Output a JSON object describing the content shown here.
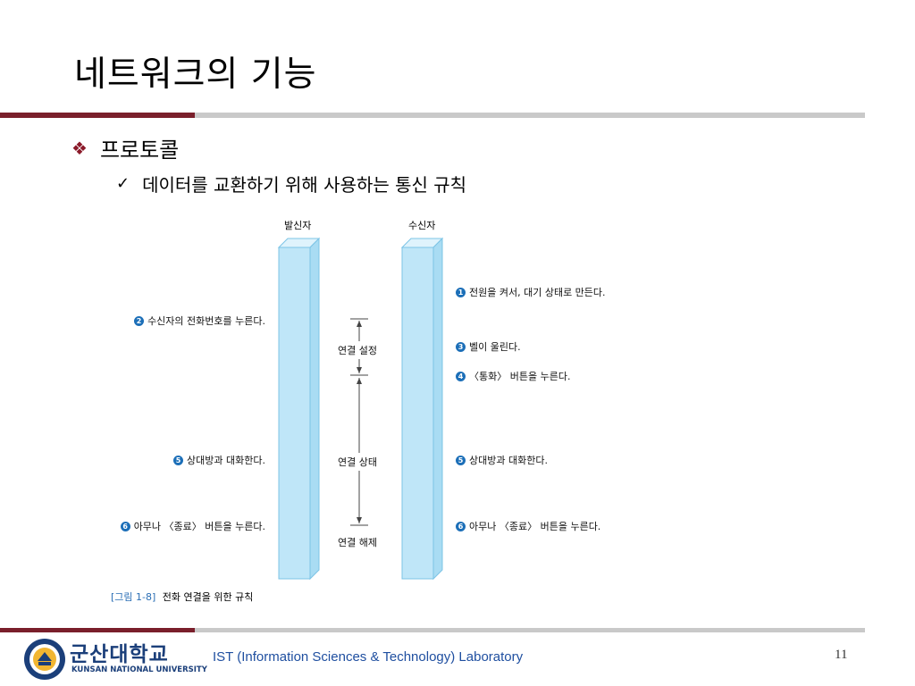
{
  "slide": {
    "title": "네트워크의 기능",
    "bullet1": "프로토콜",
    "bullet2": "데이터를 교환하기 위해 사용하는 통신 규칙",
    "page_number": "11"
  },
  "diagram": {
    "caller_label": "발신자",
    "callee_label": "수신자",
    "left_steps": [
      {
        "num": "2",
        "text": "수신자의 전화번호를 누른다."
      },
      {
        "num": "5",
        "text": "상대방과 대화한다."
      },
      {
        "num": "6",
        "text": "아무나 〈종료〉 버튼을 누른다."
      }
    ],
    "right_steps": [
      {
        "num": "1",
        "text": "전원을 켜서, 대기 상태로 만든다."
      },
      {
        "num": "3",
        "text": "벨이 울린다."
      },
      {
        "num": "4",
        "text": "〈통화〉 버튼을 누른다."
      },
      {
        "num": "5",
        "text": "상대방과 대화한다."
      },
      {
        "num": "6",
        "text": "아무나 〈종료〉 버튼을 누른다."
      }
    ],
    "phases": {
      "setup": "연결 설정",
      "state": "연결 상태",
      "release": "연결 해제"
    },
    "caption_num": "[그림 1-8]",
    "caption_text": "전화 연결을 위한 규칙"
  },
  "footer": {
    "lab": "IST (Information Sciences & Technology) Laboratory",
    "uni_kr": "군산대학교",
    "uni_en": "KUNSAN NATIONAL UNIVERSITY"
  },
  "colors": {
    "accent": "#7a1f2b",
    "rule_gray": "#c9c9c9",
    "pillar": "#bfe6f8",
    "step_number": "#1c6fb8"
  }
}
